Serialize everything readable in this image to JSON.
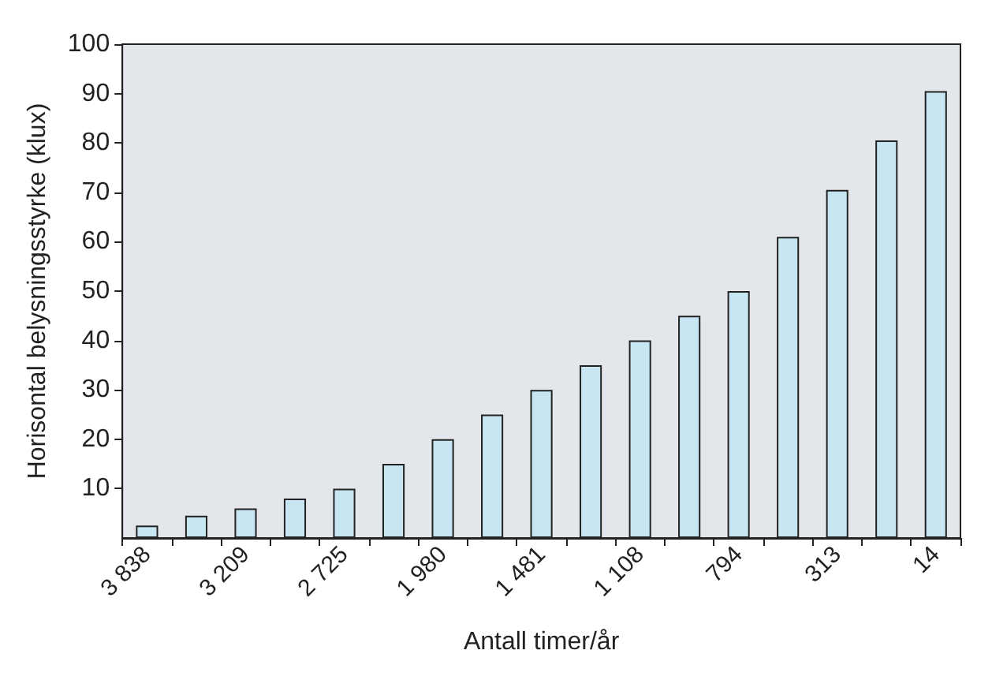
{
  "chart_data": {
    "type": "bar",
    "xlabel": "Antall timer/år",
    "ylabel": "Horisontal belysningsstyrke (klux)",
    "categories": [
      "3 838",
      null,
      "3 209",
      null,
      "2 725",
      null,
      "1 980",
      null,
      "1 481",
      null,
      "1 108",
      null,
      "794",
      null,
      "313",
      null,
      "14"
    ],
    "values": [
      2.5,
      4.5,
      6,
      8,
      10,
      15,
      20,
      25,
      30,
      35,
      40,
      45,
      50,
      61,
      70.5,
      80.5,
      90.5
    ],
    "color": "#c8e6f2",
    "ylim": [
      0,
      100
    ],
    "yticks": [
      10,
      20,
      30,
      40,
      50,
      60,
      70,
      80,
      90,
      100
    ],
    "grid": false
  }
}
